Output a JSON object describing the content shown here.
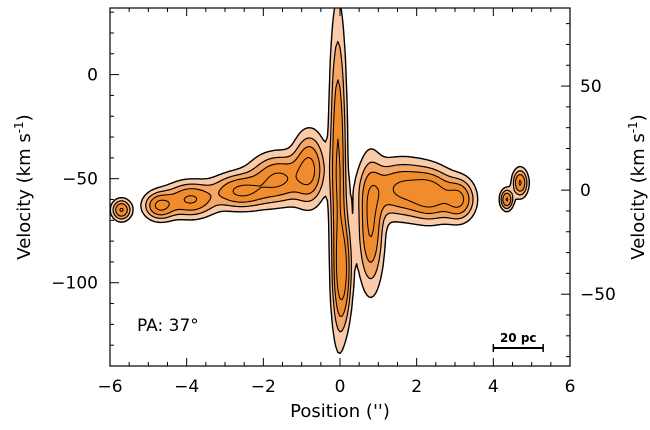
{
  "chart_data": {
    "type": "pv-diagram",
    "xlabel": "Position ('')",
    "ylabel_left": "Velocity (km s",
    "ylabel_right": "Velocity (km s",
    "ylabel_exponent": "-1",
    "ylabel_close": ")",
    "xlim": [
      -6,
      6
    ],
    "ylim_left": [
      -140,
      32
    ],
    "ylim_right": [
      -84.5,
      87.5
    ],
    "x_ticks": [
      -6,
      -4,
      -2,
      0,
      2,
      4,
      6
    ],
    "y_ticks_left": [
      0,
      -50,
      -100
    ],
    "y_ticks_right": [
      50,
      0,
      -50
    ],
    "grid": false,
    "annotation": "PA: 37°",
    "scale_bar_label": "20 pc",
    "scale_bar_x": [
      4.0,
      5.3
    ],
    "colors": {
      "fill_light": "#f9cba8",
      "fill_mid": "#f5a767",
      "fill_strong": "#f08c2c",
      "contour": "#000000"
    },
    "components": [
      {
        "name": "nuclear-core",
        "x": -0.05,
        "v": -45,
        "sx": 0.13,
        "sv": 42,
        "rot": -0.1
      },
      {
        "name": "red-tail",
        "x": 0.08,
        "v": -95,
        "sx": 0.14,
        "sv": 16,
        "rot": 0.08
      },
      {
        "name": "ne-clump-1",
        "x": 1.6,
        "v": -55,
        "sx": 0.55,
        "sv": 8,
        "rot": 0.0
      },
      {
        "name": "ne-clump-2",
        "x": 2.4,
        "v": -58,
        "sx": 0.35,
        "sv": 7,
        "rot": 0.0
      },
      {
        "name": "ne-clump-3",
        "x": 3.1,
        "v": -60,
        "sx": 0.25,
        "sv": 6,
        "rot": 0.0
      },
      {
        "name": "ne-tail",
        "x": 0.8,
        "v": -72,
        "sx": 0.2,
        "sv": 18,
        "rot": 0.0
      },
      {
        "name": "sw-clump-1",
        "x": -0.8,
        "v": -45,
        "sx": 0.25,
        "sv": 10,
        "rot": 0.0
      },
      {
        "name": "sw-clump-2",
        "x": -1.6,
        "v": -50,
        "sx": 0.45,
        "sv": 7,
        "rot": 0.0
      },
      {
        "name": "sw-clump-3",
        "x": -2.6,
        "v": -56,
        "sx": 0.45,
        "sv": 5,
        "rot": 0.0
      },
      {
        "name": "sw-clump-4",
        "x": -3.9,
        "v": -60,
        "sx": 0.4,
        "sv": 5,
        "rot": 0.0
      },
      {
        "name": "sw-clump-5",
        "x": -4.7,
        "v": -63,
        "sx": 0.25,
        "sv": 4,
        "rot": 0.0
      },
      {
        "name": "sw-clump-6",
        "x": -5.7,
        "v": -65,
        "sx": 0.15,
        "sv": 3,
        "rot": 0.0
      },
      {
        "name": "ne-outer-1",
        "x": 4.7,
        "v": -52,
        "sx": 0.12,
        "sv": 4,
        "rot": 0.0
      },
      {
        "name": "ne-outer-2",
        "x": 4.35,
        "v": -60,
        "sx": 0.1,
        "sv": 3,
        "rot": 0.0
      }
    ]
  }
}
